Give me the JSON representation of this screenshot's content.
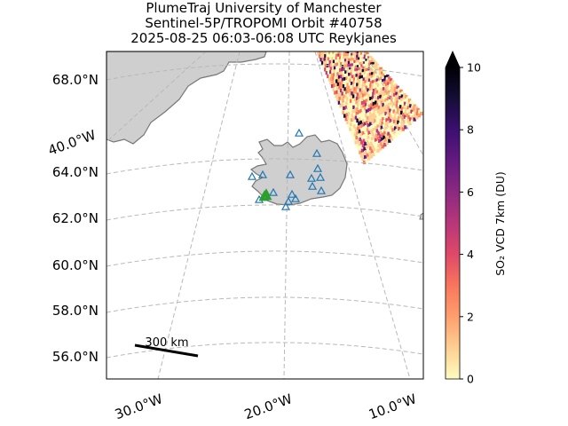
{
  "title": {
    "line1": "PlumeTraj    University of Manchester",
    "line2": "Sentinel-5P/TROPOMI Orbit #40758",
    "line3": "2025-08-25   06:03-06:08 UTC   Reykjanes"
  },
  "colors": {
    "land": "#cfcfcf",
    "coast": "#777777",
    "grid": "#b8b8b8",
    "volcano_marker": "#1f77b4",
    "active_marker": "#2ca02c"
  },
  "map": {
    "lat_labels": [
      "68.0°N",
      "64.0°N",
      "62.0°N",
      "60.0°N",
      "58.0°N",
      "56.0°N"
    ],
    "lon_labels": [
      "30.0°W",
      "20.0°W",
      "10.0°W"
    ],
    "side_lon_label": "40.0°W",
    "scale_bar": {
      "label": "300 km"
    }
  },
  "colorbar": {
    "label": "SO₂ VCD 7km (DU)",
    "ticks": [
      "0",
      "2",
      "4",
      "6",
      "8",
      "10"
    ],
    "min": 0,
    "max": 10,
    "extend": "max",
    "cmap": [
      "#fcfdbf",
      "#fecf92",
      "#fe9f6d",
      "#f8765c",
      "#de4968",
      "#b73779",
      "#8c2981",
      "#641a80",
      "#3b0f70",
      "#150e37",
      "#000004"
    ]
  },
  "chart_data": {
    "type": "map",
    "title": "PlumeTraj    University of Manchester / Sentinel-5P/TROPOMI Orbit #40758 / 2025-08-25   06:03-06:08 UTC   Reykjanes",
    "colorbar_label": "SO₂ VCD 7km (DU)",
    "colorbar_range": [
      0,
      10
    ],
    "lat_ticks": [
      68,
      64,
      62,
      60,
      58,
      56
    ],
    "lon_ticks": [
      -40,
      -30,
      -20,
      -10
    ]
  }
}
